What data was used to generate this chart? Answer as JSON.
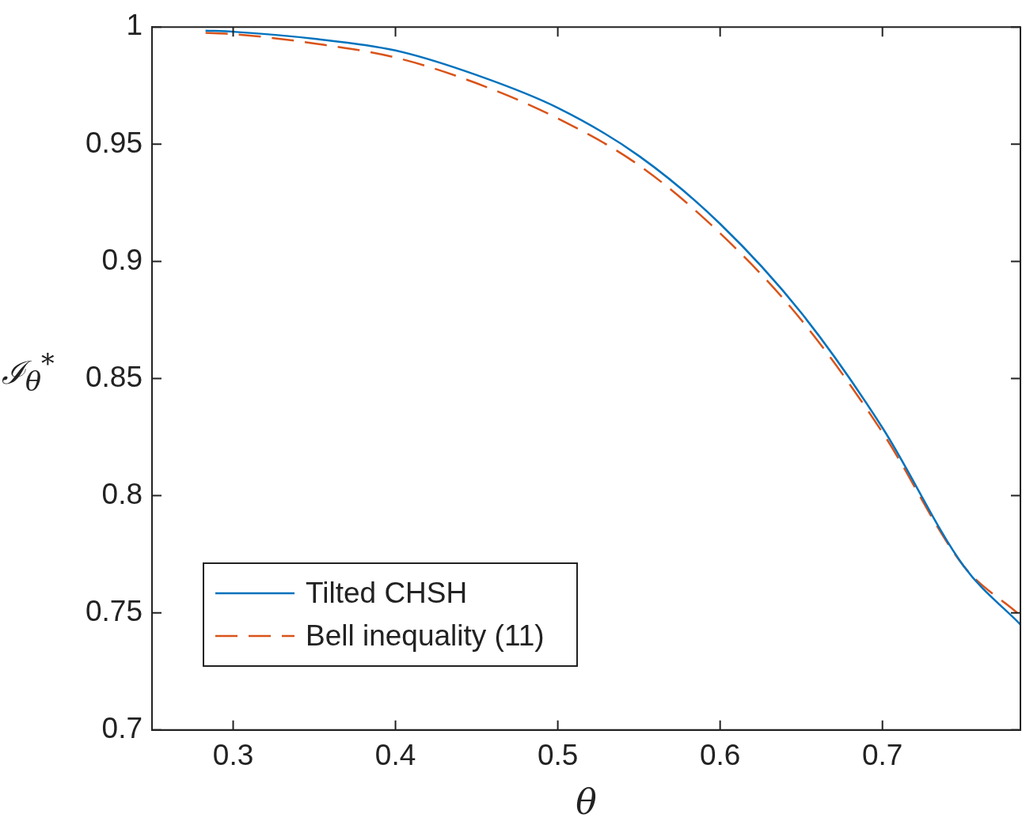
{
  "chart_data": {
    "type": "line",
    "xlabel": "θ",
    "ylabel": "ℐ$_{θ}$$^{*}$",
    "xlim": [
      0.25,
      0.785
    ],
    "xticks": [
      0.3,
      0.4,
      0.5,
      0.6,
      0.7
    ],
    "ylim": [
      0.7,
      1
    ],
    "yticks": [
      0.7,
      0.75,
      0.8,
      0.85,
      0.9,
      0.95,
      1
    ],
    "grid": false,
    "legend": "bottom left",
    "marker": "none",
    "series": [
      {
        "name": "Tilted CHSH",
        "color": "#0072bd",
        "line_style": "solid",
        "x": [
          0.283,
          0.3,
          0.35,
          0.4,
          0.45,
          0.5,
          0.55,
          0.6,
          0.65,
          0.7,
          0.75,
          0.785
        ],
        "values": [
          0.9985,
          0.998,
          0.995,
          0.99,
          0.9795,
          0.9655,
          0.945,
          0.916,
          0.878,
          0.829,
          0.77,
          0.745
        ]
      },
      {
        "name": "Bell inequality (11)",
        "color": "#d95319",
        "line_style": "dashed",
        "x": [
          0.283,
          0.3,
          0.35,
          0.4,
          0.45,
          0.5,
          0.55,
          0.6,
          0.65,
          0.7,
          0.75,
          0.783
        ],
        "values": [
          0.9975,
          0.997,
          0.993,
          0.987,
          0.976,
          0.961,
          0.941,
          0.912,
          0.875,
          0.827,
          0.77,
          0.75
        ]
      }
    ]
  }
}
